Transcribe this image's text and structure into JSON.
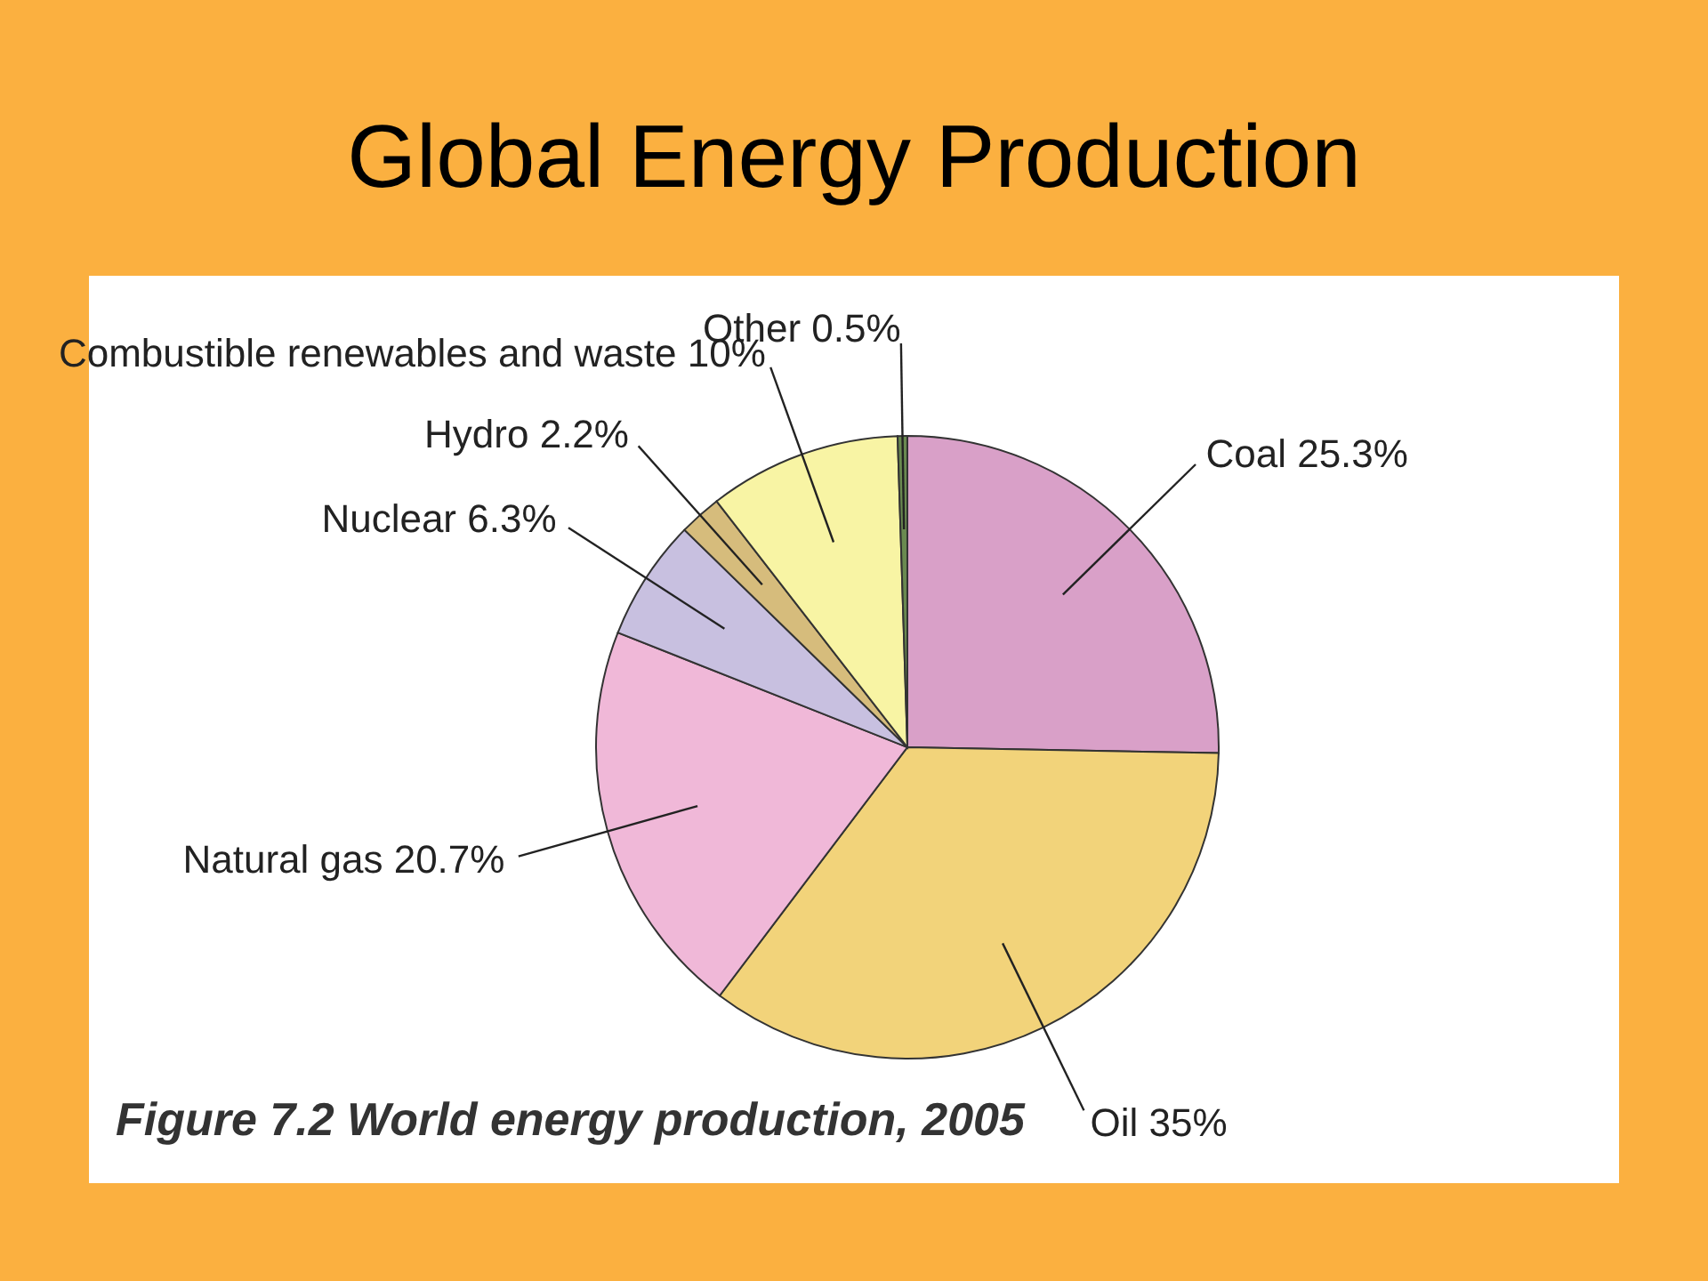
{
  "chart_data": {
    "type": "pie",
    "title": "Global Energy Production",
    "categories": [
      "Coal",
      "Oil",
      "Natural gas",
      "Nuclear",
      "Hydro",
      "Combustible renewables and waste",
      "Other"
    ],
    "values": [
      25.3,
      35,
      20.7,
      6.3,
      2.2,
      10,
      0.5
    ],
    "value_labels": [
      "25.3%",
      "35%",
      "20.7%",
      "6.3%",
      "2.2%",
      "10%",
      "0.5%"
    ],
    "colors": [
      "#d9a0c8",
      "#f2d37a",
      "#f0b8d8",
      "#c8c0e0",
      "#d6bc7c",
      "#f8f4a4",
      "#6a8a50"
    ],
    "annotations": [
      "Figure 7.2 World energy production, 2005"
    ]
  }
}
